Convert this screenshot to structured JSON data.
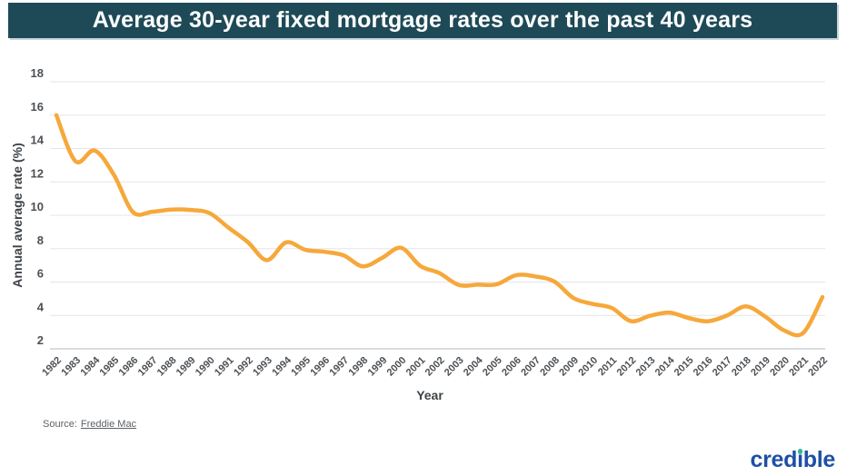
{
  "header": {
    "title": "Average 30-year fixed mortgage rates over the past 40 years",
    "bg_color": "#1e4a57",
    "text_color": "#ffffff"
  },
  "chart_data": {
    "type": "line",
    "title": "Average 30-year fixed mortgage rates over the past 40 years",
    "xlabel": "Year",
    "ylabel": "Annual average rate (%)",
    "x": [
      1982,
      1983,
      1984,
      1985,
      1986,
      1987,
      1988,
      1989,
      1990,
      1991,
      1992,
      1993,
      1994,
      1995,
      1996,
      1997,
      1998,
      1999,
      2000,
      2001,
      2002,
      2003,
      2004,
      2005,
      2006,
      2007,
      2008,
      2009,
      2010,
      2011,
      2012,
      2013,
      2014,
      2015,
      2016,
      2017,
      2018,
      2019,
      2020,
      2021,
      2022
    ],
    "series": [
      {
        "name": "Average 30-year fixed mortgage rate (%)",
        "color": "#F6A83B",
        "values": [
          16.0,
          13.24,
          13.88,
          12.43,
          10.19,
          10.21,
          10.34,
          10.32,
          10.13,
          9.25,
          8.39,
          7.31,
          8.38,
          7.93,
          7.81,
          7.6,
          6.94,
          7.44,
          8.05,
          6.97,
          6.54,
          5.83,
          5.84,
          5.87,
          6.41,
          6.34,
          6.03,
          5.04,
          4.69,
          4.45,
          3.66,
          3.98,
          4.17,
          3.85,
          3.65,
          3.99,
          4.54,
          3.94,
          3.1,
          2.96,
          5.1
        ]
      }
    ],
    "ylim": [
      2,
      18
    ],
    "yticks": [
      2,
      4,
      6,
      8,
      10,
      12,
      14,
      16,
      18
    ],
    "grid": "horizontal",
    "legend": "none",
    "line_smoothing": true,
    "grid_color": "#e5e6e8",
    "baseline_color": "#cbd0d3",
    "tick_color": "#4c5054"
  },
  "source": {
    "prefix": "Source:",
    "link_text": "Freddie Mac"
  },
  "logo": {
    "pre": "cred",
    "i_char": "i",
    "post": "ble",
    "text": "credible",
    "text_color": "#1d50a4",
    "dot_color": "#2fba8d"
  }
}
